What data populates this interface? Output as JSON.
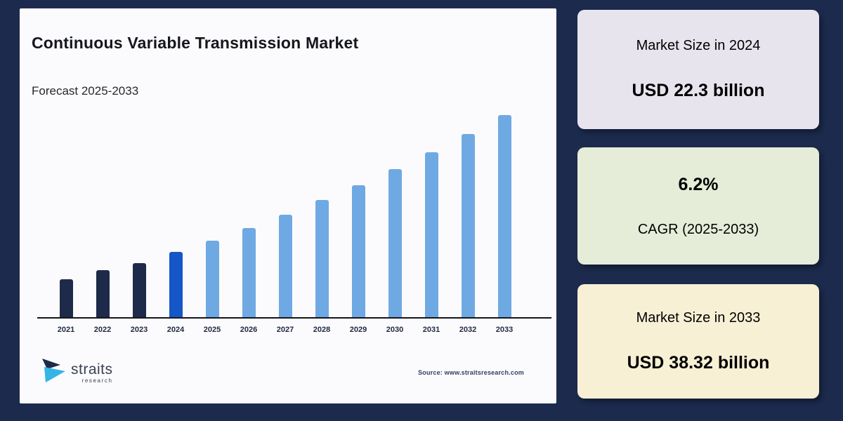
{
  "page": {
    "background": "#1c2b4d"
  },
  "chart_panel": {
    "background": "#fbfbfd",
    "title": "Continuous Variable Transmission Market",
    "title_color": "#15171c",
    "subtitle": "Forecast 2025-2033",
    "subtitle_color": "#26282e",
    "source": "Source: www.straitsresearch.com",
    "source_color": "#303e60",
    "axis_color": "#14161c",
    "tick_color": "#222b42",
    "logo": {
      "name": "straits",
      "sub": "research",
      "text_color": "#3a4152",
      "icon_dark": "#1e2a4a",
      "icon_cyan": "#35b5e5"
    }
  },
  "chart_data": {
    "type": "bar",
    "title": "Continuous Variable Transmission Market",
    "subtitle": "Forecast 2025-2033",
    "unit": "USD billion",
    "categories": [
      "2021",
      "2022",
      "2023",
      "2024",
      "2025",
      "2026",
      "2027",
      "2028",
      "2029",
      "2030",
      "2031",
      "2032",
      "2033"
    ],
    "values": [
      19.1,
      20.2,
      21.0,
      22.3,
      23.68,
      25.15,
      26.71,
      28.37,
      30.13,
      32.0,
      33.98,
      36.09,
      38.32
    ],
    "segments": [
      "historical",
      "historical",
      "historical",
      "base_year",
      "forecast",
      "forecast",
      "forecast",
      "forecast",
      "forecast",
      "forecast",
      "forecast",
      "forecast",
      "forecast"
    ],
    "colors": {
      "historical": "#1e2a4a",
      "base_year": "#1557c6",
      "forecast": "#6fa9e3"
    },
    "ylim": [
      14.7,
      38.32
    ],
    "xlabel": "",
    "ylabel": "",
    "grid": false,
    "legend": false,
    "y_axis_visible": false
  },
  "stat_cards": [
    {
      "label": "Market Size in 2024",
      "value": "USD 22.3 billion",
      "background": "#e8e4ee"
    },
    {
      "value": "6.2%",
      "label": "CAGR (2025-2033)",
      "background": "#e5edd9"
    },
    {
      "label": "Market Size in 2033",
      "value": "USD 38.32 billion",
      "background": "#f8f0d5"
    }
  ]
}
